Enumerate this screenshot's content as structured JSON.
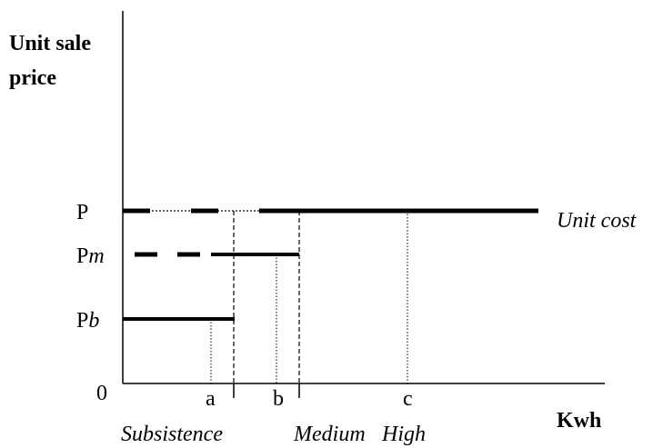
{
  "axes": {
    "y_label": [
      "Unit sale",
      "price"
    ],
    "x_label": "Kwh",
    "origin": "0"
  },
  "levels": [
    {
      "base": "P"
    },
    {
      "base": "P",
      "italic": "m"
    },
    {
      "base": "P",
      "italic": "b"
    }
  ],
  "quantities": [
    "a",
    "b",
    "c"
  ],
  "unit_cost": "Unit cost",
  "blocks": [
    "Subsistence",
    "Medium",
    "High"
  ]
}
